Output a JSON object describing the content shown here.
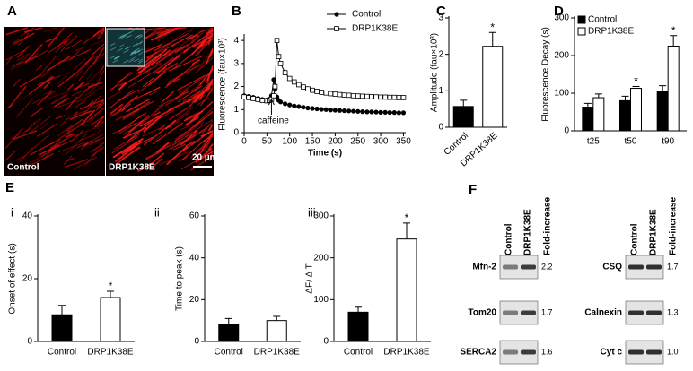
{
  "image_panel": {
    "panel": "A",
    "labels": [
      "Control",
      "DRP1K38E"
    ],
    "scale_bar": "20 µm"
  },
  "chart_data": [
    {
      "type": "line",
      "panel": "B",
      "y_label": "Fluorescence (fau×10³)",
      "x_label": "Time (s)",
      "x": [
        0,
        10,
        20,
        30,
        40,
        50,
        55,
        60,
        65,
        68,
        72,
        76,
        80,
        90,
        100,
        110,
        120,
        130,
        140,
        150,
        160,
        170,
        180,
        190,
        200,
        210,
        220,
        230,
        240,
        250,
        260,
        270,
        280,
        290,
        300,
        310,
        320,
        330,
        340,
        350
      ],
      "series": [
        {
          "name": "Control",
          "color": "#000000",
          "marker": "circle",
          "values": [
            1.6,
            1.57,
            1.53,
            1.48,
            1.44,
            1.42,
            1.45,
            1.6,
            2.3,
            1.9,
            1.55,
            1.4,
            1.33,
            1.25,
            1.2,
            1.16,
            1.13,
            1.1,
            1.07,
            1.05,
            1.03,
            1.01,
            1.0,
            0.98,
            0.97,
            0.96,
            0.95,
            0.94,
            0.93,
            0.92,
            0.91,
            0.9,
            0.9,
            0.89,
            0.88,
            0.88,
            0.87,
            0.87,
            0.86,
            0.86
          ]
        },
        {
          "name": "DRP1K38E",
          "color": "#000000",
          "marker": "square",
          "values": [
            1.55,
            1.52,
            1.48,
            1.44,
            1.4,
            1.38,
            1.4,
            1.45,
            1.6,
            2.0,
            4.0,
            3.3,
            3.0,
            2.6,
            2.35,
            2.2,
            2.08,
            1.98,
            1.9,
            1.84,
            1.79,
            1.75,
            1.72,
            1.69,
            1.67,
            1.65,
            1.63,
            1.62,
            1.6,
            1.59,
            1.58,
            1.57,
            1.56,
            1.55,
            1.54,
            1.54,
            1.53,
            1.53,
            1.52,
            1.52
          ]
        }
      ],
      "xlim": [
        0,
        355
      ],
      "xticks": [
        0,
        50,
        100,
        150,
        200,
        250,
        300,
        350
      ],
      "ylim": [
        0,
        4.2
      ],
      "yticks": [
        0,
        1,
        2,
        3,
        4
      ],
      "legend": "upper right",
      "annotations": [
        {
          "text": "caffeine",
          "x": 60
        }
      ]
    },
    {
      "type": "bar",
      "panel": "C",
      "y_label": "Amplitude (fau×10³)",
      "categories": [
        "Control",
        "DRP1K38E"
      ],
      "values": [
        0.57,
        2.22
      ],
      "errors": [
        0.17,
        0.38
      ],
      "colors": [
        "#000000",
        "#ffffff"
      ],
      "ylim": [
        0,
        3
      ],
      "yticks": [
        0,
        1,
        2,
        3
      ],
      "annotations": [
        {
          "text": "*",
          "index": 1
        }
      ]
    },
    {
      "type": "bar",
      "panel": "D",
      "y_label": "Fluorescence Decay (s)",
      "categories": [
        "t25",
        "t50",
        "t90"
      ],
      "series": [
        {
          "name": "Control",
          "color": "#000000",
          "values": [
            63,
            80,
            105
          ],
          "errors": [
            10,
            12,
            15
          ]
        },
        {
          "name": "DRP1K38E",
          "color": "#ffffff",
          "values": [
            88,
            113,
            225
          ],
          "errors": [
            10,
            5,
            28
          ]
        }
      ],
      "ylim": [
        0,
        300
      ],
      "yticks": [
        0,
        100,
        200,
        300
      ],
      "legend": "upper left",
      "annotations": [
        {
          "text": "*",
          "series": 1,
          "index": 1
        },
        {
          "text": "*",
          "series": 1,
          "index": 2
        }
      ]
    },
    {
      "type": "bar",
      "panel": "E",
      "subpanel": "i",
      "y_label": "Onset of effect (s)",
      "categories": [
        "Control",
        "DRP1K38E"
      ],
      "values": [
        8.5,
        14
      ],
      "errors": [
        3,
        2
      ],
      "colors": [
        "#000000",
        "#ffffff"
      ],
      "ylim": [
        0,
        40
      ],
      "yticks": [
        0,
        20,
        40
      ],
      "annotations": [
        {
          "text": "*",
          "index": 1
        }
      ]
    },
    {
      "type": "bar",
      "subpanel": "ii",
      "y_label": "Time to peak (s)",
      "categories": [
        "Control",
        "DRP1K38E"
      ],
      "values": [
        8,
        10
      ],
      "errors": [
        3,
        2
      ],
      "colors": [
        "#000000",
        "#ffffff"
      ],
      "ylim": [
        0,
        60
      ],
      "yticks": [
        0,
        20,
        40,
        60
      ]
    },
    {
      "type": "bar",
      "subpanel": "iii",
      "y_label": "ΔF/ Δ T",
      "categories": [
        "Control",
        "DRP1K38E"
      ],
      "values": [
        70,
        245
      ],
      "errors": [
        12,
        38
      ],
      "colors": [
        "#000000",
        "#ffffff"
      ],
      "ylim": [
        0,
        300
      ],
      "yticks": [
        0,
        100,
        200,
        300
      ],
      "annotations": [
        {
          "text": "*",
          "index": 1
        }
      ]
    }
  ],
  "blots": {
    "panel": "F",
    "groups": [
      {
        "columns": [
          "Control",
          "DRP1K38E",
          "Fold-increase"
        ],
        "rows": [
          {
            "label": "Mfn-2",
            "fold": "2.2"
          },
          {
            "label": "Tom20",
            "fold": "1.7"
          },
          {
            "label": "SERCA2",
            "fold": "1.6"
          }
        ]
      },
      {
        "columns": [
          "Control",
          "DRP1K38E",
          "Fold-increase"
        ],
        "rows": [
          {
            "label": "CSQ",
            "fold": "1.7"
          },
          {
            "label": "Calnexin",
            "fold": "1.3"
          },
          {
            "label": "Cyt c",
            "fold": "1.0"
          }
        ]
      }
    ]
  }
}
